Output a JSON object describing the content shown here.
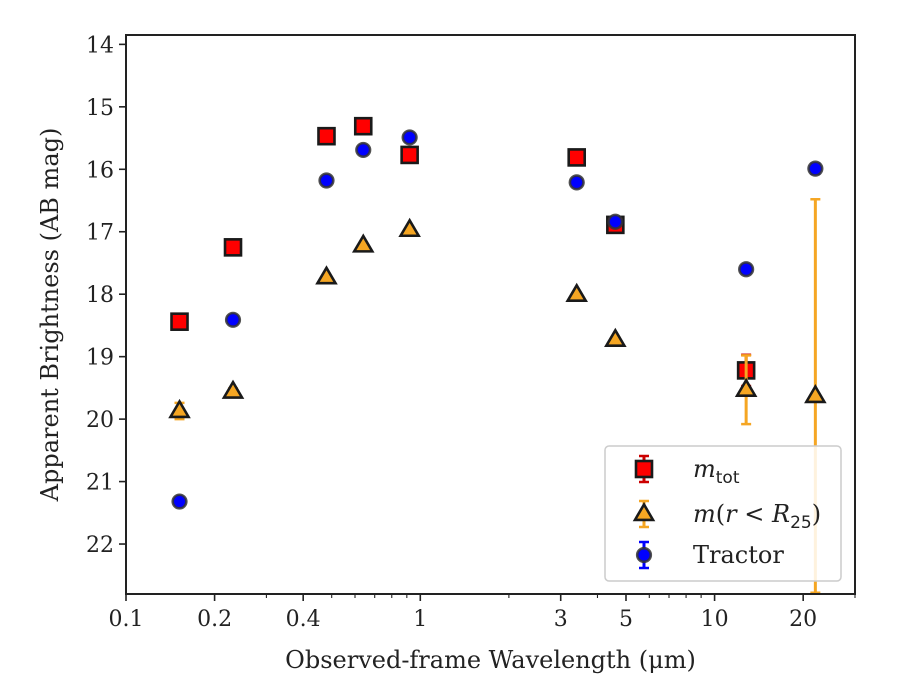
{
  "chart_data": {
    "type": "scatter",
    "title": "",
    "xlabel": "Observed-frame Wavelength (μm)",
    "ylabel": "Apparent Brightness (AB mag)",
    "x_scale": "log",
    "xlim": [
      0.1,
      30
    ],
    "ylim": [
      22.8,
      13.85
    ],
    "y_inverted": true,
    "x_ticks": [
      0.1,
      0.2,
      0.4,
      1,
      3,
      5,
      10,
      20
    ],
    "x_tick_labels": [
      "0.1",
      "0.2",
      "0.4",
      "1",
      "3",
      "5",
      "10",
      "20"
    ],
    "y_ticks": [
      14,
      15,
      16,
      17,
      18,
      19,
      20,
      21,
      22
    ],
    "y_tick_labels": [
      "14",
      "15",
      "16",
      "17",
      "18",
      "19",
      "20",
      "21",
      "22"
    ],
    "grid": false,
    "legend_position": "lower-right",
    "series": [
      {
        "legend_html": "<tspan class='legend-italic'>m</tspan><tspan class='legend-sub' dy='6'>tot</tspan>",
        "marker": "square",
        "color": "#ff0000",
        "edge_color": "#1a1a1a",
        "error_color": "#cc0000",
        "points": [
          {
            "x": 0.152,
            "y": 18.44,
            "err": 0.03
          },
          {
            "x": 0.231,
            "y": 17.25,
            "err": 0.03
          },
          {
            "x": 0.48,
            "y": 15.47,
            "err": 0.02
          },
          {
            "x": 0.64,
            "y": 15.31,
            "err": 0.02
          },
          {
            "x": 0.92,
            "y": 15.77,
            "err": 0.02
          },
          {
            "x": 3.4,
            "y": 15.81,
            "err": 0.02
          },
          {
            "x": 4.6,
            "y": 16.89,
            "err": 0.03
          },
          {
            "x": 12.8,
            "y": 19.22,
            "err": 0.25
          }
        ]
      },
      {
        "legend_html": "<tspan class='legend-italic'>m</tspan>(<tspan class='legend-italic'>r</tspan> &lt; <tspan class='legend-italic'>R</tspan><tspan class='legend-sub' dy='6'>25</tspan><tspan dy='-6'>)</tspan>",
        "marker": "triangle",
        "color": "#f5a623",
        "edge_color": "#1a1a1a",
        "error_color": "#f5a623",
        "points": [
          {
            "x": 0.152,
            "y": 19.87,
            "err": 0.13
          },
          {
            "x": 0.231,
            "y": 19.56,
            "err": 0.05
          },
          {
            "x": 0.48,
            "y": 17.73,
            "err": 0.02
          },
          {
            "x": 0.64,
            "y": 17.22,
            "err": 0.02
          },
          {
            "x": 0.92,
            "y": 16.97,
            "err": 0.02
          },
          {
            "x": 3.4,
            "y": 18.01,
            "err": 0.03
          },
          {
            "x": 4.6,
            "y": 18.73,
            "err": 0.04
          },
          {
            "x": 12.8,
            "y": 19.53,
            "err": 0.55
          },
          {
            "x": 22.0,
            "y": 19.63,
            "err_low": 3.15,
            "err_high": 3.15
          }
        ]
      },
      {
        "legend": "Tractor",
        "marker": "circle",
        "color": "#0000ff",
        "edge_color": "#333333",
        "error_color": "#0000ff",
        "points": [
          {
            "x": 0.152,
            "y": 21.32,
            "err": 0.06
          },
          {
            "x": 0.231,
            "y": 18.41,
            "err": 0.05
          },
          {
            "x": 0.48,
            "y": 16.18,
            "err": 0.05
          },
          {
            "x": 0.64,
            "y": 15.69,
            "err": 0.05
          },
          {
            "x": 0.92,
            "y": 15.49,
            "err": 0.06
          },
          {
            "x": 3.4,
            "y": 16.21,
            "err": 0.05
          },
          {
            "x": 4.6,
            "y": 16.84,
            "err": 0.05
          },
          {
            "x": 12.8,
            "y": 17.6,
            "err": 0.06
          },
          {
            "x": 22.0,
            "y": 15.99,
            "err": 0.08
          }
        ]
      }
    ]
  }
}
